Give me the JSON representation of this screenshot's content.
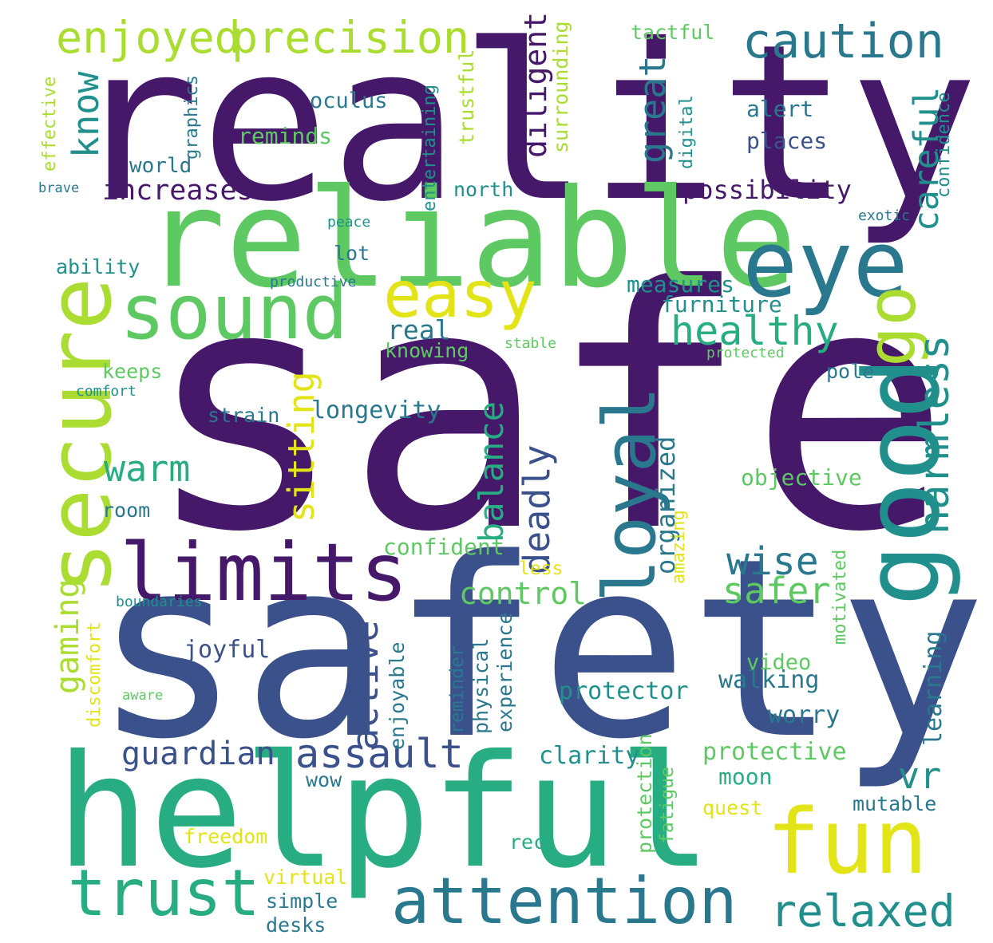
{
  "title": "",
  "palette": {
    "p1": "#46186a",
    "p2": "#3b518b",
    "p3": "#2a788e",
    "p4": "#21908d",
    "p5": "#27ad81",
    "p6": "#5ec962",
    "p7": "#aadc32",
    "p8": "#e3e418"
  },
  "words": [
    {
      "t": "safe",
      "c": "p1"
    },
    {
      "t": "reality",
      "c": "p1"
    },
    {
      "t": "safety",
      "c": "p2"
    },
    {
      "t": "helpful",
      "c": "p5"
    },
    {
      "t": "reliable",
      "c": "p6"
    },
    {
      "t": "secure",
      "c": "p7"
    },
    {
      "t": "eye",
      "c": "p3"
    },
    {
      "t": "sound",
      "c": "p6"
    },
    {
      "t": "good",
      "c": "p4"
    },
    {
      "t": "fun",
      "c": "p8"
    },
    {
      "t": "limits",
      "c": "p1"
    },
    {
      "t": "trust",
      "c": "p5"
    },
    {
      "t": "attention",
      "c": "p3"
    },
    {
      "t": "easy",
      "c": "p8"
    },
    {
      "t": "loyal",
      "c": "p3"
    },
    {
      "t": "go",
      "c": "p7"
    },
    {
      "t": "caution",
      "c": "p3"
    },
    {
      "t": "enjoyed",
      "c": "p7"
    },
    {
      "t": "precision",
      "c": "p7"
    },
    {
      "t": "healthy",
      "c": "p5"
    },
    {
      "t": "relaxed",
      "c": "p4"
    },
    {
      "t": "assault",
      "c": "p2"
    },
    {
      "t": "harmless",
      "c": "p4"
    },
    {
      "t": "active",
      "c": "p2"
    },
    {
      "t": "deadly",
      "c": "p2"
    },
    {
      "t": "sitting",
      "c": "p8"
    },
    {
      "t": "balance",
      "c": "p5"
    },
    {
      "t": "warm",
      "c": "p5"
    },
    {
      "t": "wise",
      "c": "p3"
    },
    {
      "t": "safer",
      "c": "p6"
    },
    {
      "t": "careful",
      "c": "p4"
    },
    {
      "t": "great",
      "c": "p3"
    },
    {
      "t": "know",
      "c": "p4"
    },
    {
      "t": "diligent",
      "c": "p1"
    },
    {
      "t": "vr",
      "c": "p4"
    },
    {
      "t": "gaming",
      "c": "p7"
    },
    {
      "t": "guardian",
      "c": "p2"
    },
    {
      "t": "control",
      "c": "p6"
    },
    {
      "t": "organized",
      "c": "p3"
    },
    {
      "t": "increases",
      "c": "p1"
    },
    {
      "t": "learning",
      "c": "p3"
    },
    {
      "t": "real",
      "c": "p3"
    },
    {
      "t": "possibility",
      "c": "p1"
    },
    {
      "t": "longevity",
      "c": "p3"
    },
    {
      "t": "strain",
      "c": "p3"
    },
    {
      "t": "confident",
      "c": "p6"
    },
    {
      "t": "objective",
      "c": "p6"
    },
    {
      "t": "measures",
      "c": "p4"
    },
    {
      "t": "furniture",
      "c": "p4"
    },
    {
      "t": "protector",
      "c": "p4"
    },
    {
      "t": "walking",
      "c": "p3"
    },
    {
      "t": "video",
      "c": "p6"
    },
    {
      "t": "worry",
      "c": "p3"
    },
    {
      "t": "clarity",
      "c": "p4"
    },
    {
      "t": "protective",
      "c": "p6"
    },
    {
      "t": "moon",
      "c": "p5"
    },
    {
      "t": "joyful",
      "c": "p2"
    },
    {
      "t": "oculus",
      "c": "p3"
    },
    {
      "t": "reminds",
      "c": "p6"
    },
    {
      "t": "world",
      "c": "p3"
    },
    {
      "t": "places",
      "c": "p2"
    },
    {
      "t": "alert",
      "c": "p3"
    },
    {
      "t": "tactful",
      "c": "p6"
    },
    {
      "t": "north",
      "c": "p4"
    },
    {
      "t": "lot",
      "c": "p3"
    },
    {
      "t": "ability",
      "c": "p4"
    },
    {
      "t": "room",
      "c": "p3"
    },
    {
      "t": "keeps",
      "c": "p6"
    },
    {
      "t": "pole",
      "c": "p3"
    },
    {
      "t": "knowing",
      "c": "p6"
    },
    {
      "t": "wow",
      "c": "p3"
    },
    {
      "t": "rec",
      "c": "p5"
    },
    {
      "t": "quest",
      "c": "p8"
    },
    {
      "t": "mutable",
      "c": "p3"
    },
    {
      "t": "freedom",
      "c": "p8"
    },
    {
      "t": "virtual",
      "c": "p8"
    },
    {
      "t": "simple",
      "c": "p3"
    },
    {
      "t": "desks",
      "c": "p3"
    },
    {
      "t": "less",
      "c": "p8"
    },
    {
      "t": "effective",
      "c": "p7"
    },
    {
      "t": "graphics",
      "c": "p3"
    },
    {
      "t": "entertaining",
      "c": "p4"
    },
    {
      "t": "trustful",
      "c": "p7"
    },
    {
      "t": "surrounding",
      "c": "p7"
    },
    {
      "t": "digital",
      "c": "p4"
    },
    {
      "t": "confidence",
      "c": "p4"
    },
    {
      "t": "experience",
      "c": "p3"
    },
    {
      "t": "physical",
      "c": "p3"
    },
    {
      "t": "reminder",
      "c": "p3"
    },
    {
      "t": "enjoyable",
      "c": "p3"
    },
    {
      "t": "discomfort",
      "c": "p8"
    },
    {
      "t": "protection",
      "c": "p6"
    },
    {
      "t": "fatigue",
      "c": "p6"
    },
    {
      "t": "amazing",
      "c": "p8"
    },
    {
      "t": "motivated",
      "c": "p6"
    },
    {
      "t": "peace",
      "c": "p4"
    },
    {
      "t": "productive",
      "c": "p3"
    },
    {
      "t": "stable",
      "c": "p6"
    },
    {
      "t": "protected",
      "c": "p6"
    },
    {
      "t": "exotic",
      "c": "p3"
    },
    {
      "t": "brave",
      "c": "p3"
    },
    {
      "t": "comfort",
      "c": "p4"
    },
    {
      "t": "boundaries",
      "c": "p4"
    },
    {
      "t": "aware",
      "c": "p6"
    }
  ]
}
